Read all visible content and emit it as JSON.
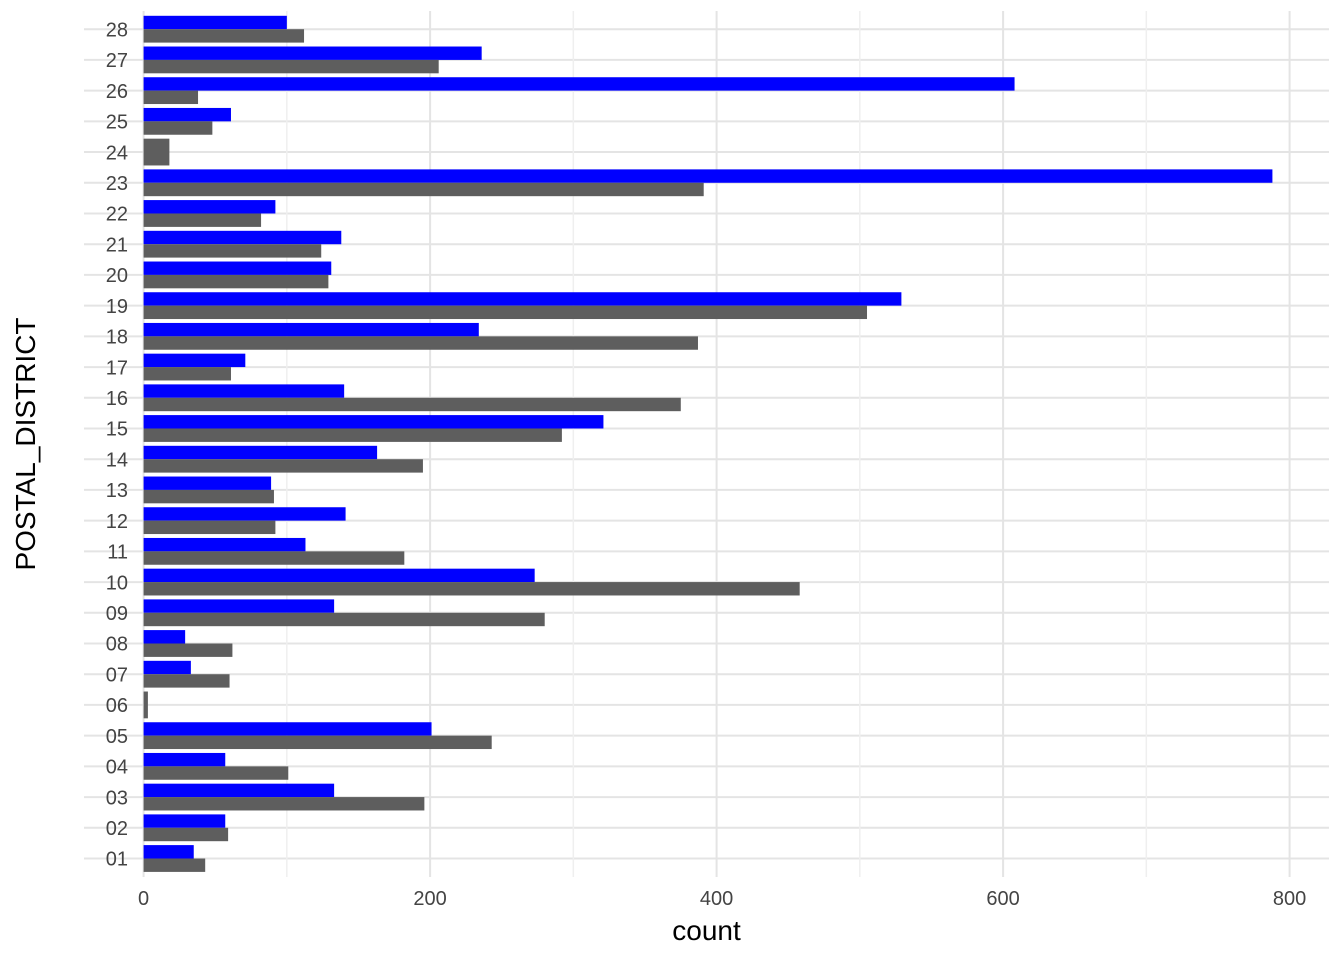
{
  "figure": {
    "background": "#FFFFFF"
  },
  "chart_data": {
    "type": "bar",
    "orientation": "horizontal",
    "title": "",
    "xlabel": "count",
    "ylabel": "POSTAL_DISTRICT",
    "xlim": [
      0,
      828
    ],
    "x_major_ticks": [
      0,
      200,
      400,
      600,
      800
    ],
    "x_minor_ticks": [
      100,
      300,
      500,
      700
    ],
    "legend_position": "none",
    "grid": true,
    "categories_top_to_bottom": [
      "28",
      "27",
      "26",
      "25",
      "24",
      "23",
      "22",
      "21",
      "20",
      "19",
      "18",
      "17",
      "16",
      "15",
      "14",
      "13",
      "12",
      "11",
      "10",
      "09",
      "08",
      "07",
      "06",
      "05",
      "04",
      "03",
      "02",
      "01"
    ],
    "series": [
      {
        "name": "blue",
        "color": "#0000FF",
        "values": [
          100,
          236,
          608,
          61,
          null,
          788,
          92,
          138,
          131,
          529,
          234,
          71,
          140,
          321,
          163,
          89,
          141,
          113,
          273,
          133,
          29,
          33,
          null,
          201,
          57,
          133,
          57,
          35
        ]
      },
      {
        "name": "grey",
        "color": "#5E5E5E",
        "values": [
          112,
          206,
          38,
          48,
          18,
          391,
          82,
          124,
          129,
          505,
          387,
          61,
          375,
          292,
          195,
          91,
          92,
          182,
          458,
          280,
          62,
          60,
          3,
          243,
          101,
          196,
          59,
          43
        ]
      }
    ],
    "style": {
      "major_grid_color": "#E4E4E4",
      "minor_grid_color": "#EFEFEF",
      "tick_label_color": "#444444",
      "axis_title_color": "#000000"
    }
  }
}
